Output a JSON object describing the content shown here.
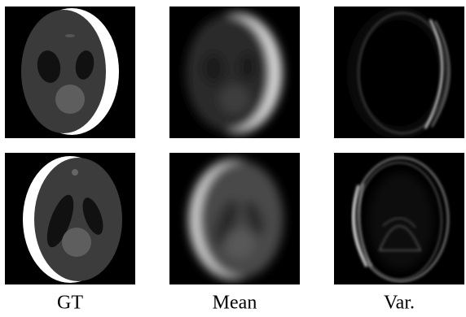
{
  "figure": {
    "columns": [
      "GT",
      "Mean",
      "Var."
    ]
  }
}
